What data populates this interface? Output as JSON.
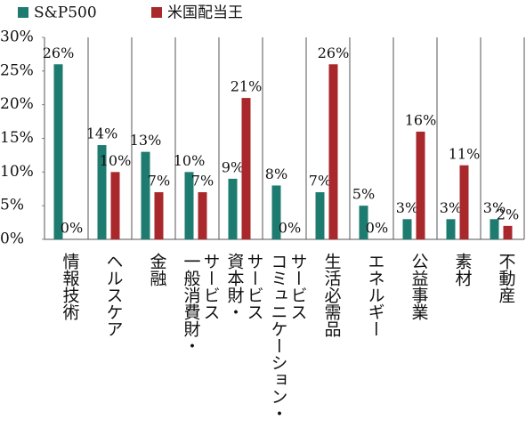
{
  "chart_data": {
    "type": "bar",
    "categories": [
      "情報技術",
      "ヘルスケア",
      "金融",
      "サービス\n一般消費財・",
      "サービス\n資本財・",
      "サービス\nコミュニケーション・",
      "生活必需品",
      "エネルギー",
      "公益事業",
      "素材",
      "不動産"
    ],
    "series": [
      {
        "name": "S&P500",
        "color": "#1e7b70",
        "values": [
          26,
          14,
          13,
          10,
          9,
          8,
          7,
          5,
          3,
          3,
          3
        ],
        "value_labels": [
          "26%",
          "14%",
          "13%",
          "10%",
          "9%",
          "8%",
          "7%",
          "5%",
          "3%",
          "3%",
          "3%"
        ]
      },
      {
        "name": "米国配当王",
        "color": "#a8282c",
        "values": [
          0,
          10,
          7,
          7,
          21,
          0,
          26,
          0,
          16,
          11,
          2
        ],
        "value_labels": [
          "0%",
          "10%",
          "7%",
          "7%",
          "21%",
          "0%",
          "26%",
          "0%",
          "16%",
          "11%",
          "2%"
        ]
      }
    ],
    "ylim": [
      0,
      30
    ],
    "yticks": [
      {
        "value": 0,
        "label": "0%"
      },
      {
        "value": 5,
        "label": "5%"
      },
      {
        "value": 10,
        "label": "10%"
      },
      {
        "value": 15,
        "label": "15%"
      },
      {
        "value": 20,
        "label": "20%"
      },
      {
        "value": 25,
        "label": "25%"
      },
      {
        "value": 30,
        "label": "30%"
      }
    ],
    "grid": true
  }
}
